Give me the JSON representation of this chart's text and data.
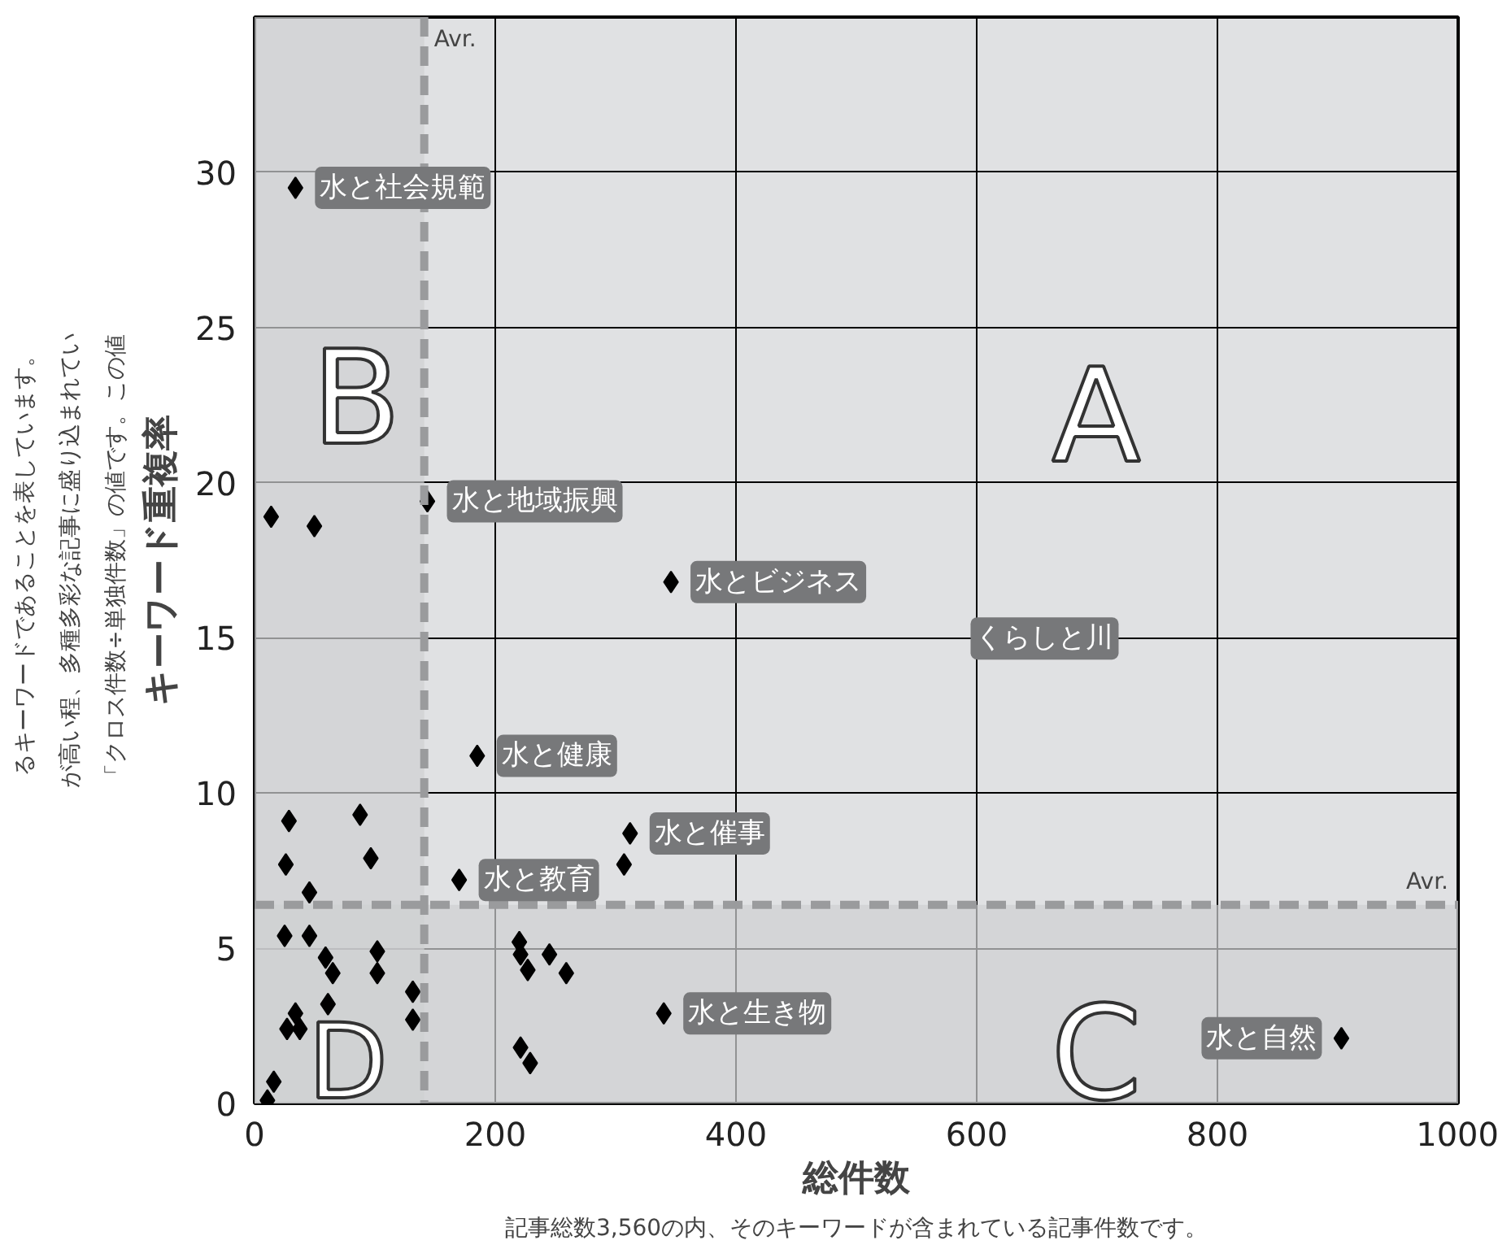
{
  "chart_data": {
    "type": "scatter",
    "xlabel": "総件数",
    "ylabel": "キーワード重複率",
    "x": [
      185,
      28.6,
      87.7,
      26,
      96.6,
      45.6,
      170,
      312,
      307,
      25,
      45.6,
      102,
      59,
      65,
      102,
      131.5,
      131.5,
      61,
      34,
      27,
      37.6,
      16,
      10.7,
      220,
      221,
      227,
      245,
      259,
      340,
      221,
      229,
      34,
      13.8,
      49.7,
      143.6,
      346,
      903
    ],
    "series": [
      {
        "color": "#000000",
        "values": [
          11.2,
          9.1,
          9.3,
          7.7,
          7.9,
          6.8,
          7.2,
          8.7,
          7.7,
          5.4,
          5.4,
          4.9,
          4.7,
          4.2,
          4.2,
          3.6,
          2.7,
          3.2,
          2.9,
          2.4,
          2.4,
          0.7,
          0.1,
          5.2,
          4.8,
          4.3,
          4.8,
          4.2,
          2.9,
          1.8,
          1.3,
          29.5,
          18.9,
          18.6,
          19.4,
          16.8,
          2.1
        ]
      }
    ],
    "marker": "diamond",
    "xlim": [
      0,
      1000
    ],
    "ylim": [
      0,
      35
    ],
    "xticks": [
      0,
      200,
      400,
      600,
      800,
      1000
    ],
    "yticks": [
      0,
      5,
      10,
      15,
      20,
      25,
      30
    ],
    "grid": true,
    "ref_lines": [
      {
        "axis": "x",
        "value": 141,
        "label": "Avr.",
        "color": "#9a9b9d",
        "line_style": "dashed"
      },
      {
        "axis": "y",
        "value": 6.4,
        "label": "Avr.",
        "color": "#9a9b9d",
        "line_style": "dashed"
      }
    ],
    "bands": [
      {
        "axis": "x",
        "from": 0,
        "to": 141,
        "color": "#cfd0d2"
      },
      {
        "axis": "y",
        "from": 0,
        "to": 6.4,
        "color": "#cfd0d2"
      }
    ],
    "annotations": [
      "A",
      "B",
      "C",
      "D",
      "くらしと川",
      {
        "text": "水と社会規範",
        "x": 34,
        "y": 29.5
      },
      {
        "text": "水と地域振興",
        "x": 143.6,
        "y": 19.4
      },
      {
        "text": "水とビジネス",
        "x": 346,
        "y": 16.8
      },
      {
        "text": "水と健康",
        "x": 185,
        "y": 11.2
      },
      {
        "text": "水と催事",
        "x": 312,
        "y": 8.7
      },
      {
        "text": "水と教育",
        "x": 170,
        "y": 7.2
      },
      {
        "text": "水と生き物",
        "x": 340,
        "y": 2.9
      },
      {
        "text": "水と自然",
        "x": 903,
        "y": 2.1
      },
      "「クロス件数÷単独件数」の値です。この値が高い程、多種多彩な記事に盛り込まれているキーワードであることを表しています。",
      "記事総数3,560の内、そのキーワードが含まれている記事件数です。"
    ]
  }
}
